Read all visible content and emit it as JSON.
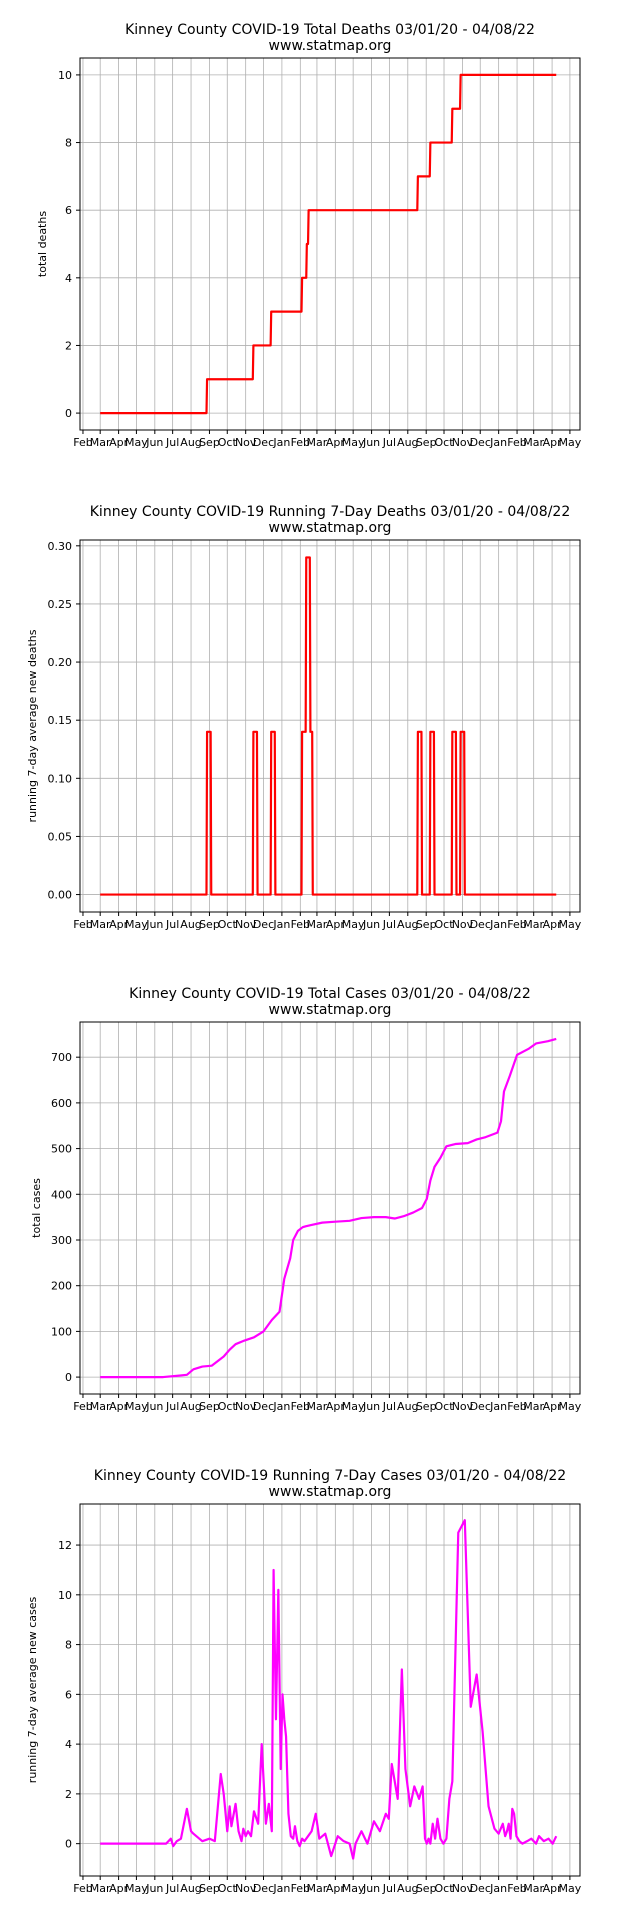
{
  "chart_data": [
    {
      "type": "line",
      "title": "Kinney County COVID-19 Total Deaths 03/01/20 - 04/08/22",
      "subtitle": "www.statmap.org",
      "ylabel": "total deaths",
      "ylim": [
        -0.5,
        10.5
      ],
      "yticks": [
        0,
        2,
        4,
        6,
        8,
        10
      ],
      "ytick_labels": [
        "0",
        "2",
        "4",
        "6",
        "8",
        "10"
      ],
      "grid": true,
      "color": "#ff0000",
      "x": [
        "2020-03-01",
        "2020-08-27",
        "2020-08-28",
        "2020-11-13",
        "2020-11-14",
        "2020-12-13",
        "2020-12-14",
        "2021-02-03",
        "2021-02-04",
        "2021-02-11",
        "2021-02-12",
        "2021-02-14",
        "2021-02-15",
        "2021-08-17",
        "2021-08-18",
        "2021-09-07",
        "2021-09-08",
        "2021-10-14",
        "2021-10-15",
        "2021-10-28",
        "2021-10-29",
        "2022-04-08"
      ],
      "y": [
        0,
        0,
        1,
        1,
        2,
        2,
        3,
        3,
        4,
        4,
        5,
        5,
        6,
        6,
        7,
        7,
        8,
        8,
        9,
        9,
        10,
        10
      ]
    },
    {
      "type": "line",
      "title": "Kinney County COVID-19 Running 7-Day Deaths 03/01/20 - 04/08/22",
      "subtitle": "www.statmap.org",
      "ylabel": "running 7-day average new deaths",
      "ylim": [
        -0.015,
        0.305
      ],
      "yticks": [
        0,
        0.05,
        0.1,
        0.15,
        0.2,
        0.25,
        0.3
      ],
      "ytick_labels": [
        "0.00",
        "0.05",
        "0.10",
        "0.15",
        "0.20",
        "0.25",
        "0.30"
      ],
      "grid": true,
      "color": "#ff0000",
      "x": [
        "2020-03-01",
        "2020-08-27",
        "2020-08-28",
        "2020-09-03",
        "2020-09-04",
        "2020-11-13",
        "2020-11-14",
        "2020-11-20",
        "2020-11-21",
        "2020-12-13",
        "2020-12-14",
        "2020-12-20",
        "2020-12-21",
        "2021-02-03",
        "2021-02-04",
        "2021-02-10",
        "2021-02-11",
        "2021-02-17",
        "2021-02-18",
        "2021-02-21",
        "2021-02-22",
        "2021-08-17",
        "2021-08-18",
        "2021-08-24",
        "2021-08-25",
        "2021-09-07",
        "2021-09-08",
        "2021-09-14",
        "2021-09-15",
        "2021-10-14",
        "2021-10-15",
        "2021-10-21",
        "2021-10-22",
        "2021-10-28",
        "2021-10-29",
        "2021-11-04",
        "2021-11-05",
        "2022-04-08"
      ],
      "y": [
        0,
        0,
        0.14,
        0.14,
        0,
        0,
        0.14,
        0.14,
        0,
        0,
        0.14,
        0.14,
        0,
        0,
        0.14,
        0.14,
        0.29,
        0.29,
        0.14,
        0.14,
        0,
        0,
        0.14,
        0.14,
        0,
        0,
        0.14,
        0.14,
        0,
        0,
        0.14,
        0.14,
        0,
        0,
        0.14,
        0.14,
        0,
        0
      ]
    },
    {
      "type": "line",
      "title": "Kinney County COVID-19 Total Cases 03/01/20 - 04/08/22",
      "subtitle": "www.statmap.org",
      "ylabel": "total cases",
      "ylim": [
        -37,
        777
      ],
      "yticks": [
        0,
        100,
        200,
        300,
        400,
        500,
        600,
        700
      ],
      "ytick_labels": [
        "0",
        "100",
        "200",
        "300",
        "400",
        "500",
        "600",
        "700"
      ],
      "grid": true,
      "color": "#ff00ff",
      "x": [
        "2020-03-01",
        "2020-05-01",
        "2020-06-15",
        "2020-07-10",
        "2020-07-25",
        "2020-08-05",
        "2020-08-20",
        "2020-09-05",
        "2020-09-25",
        "2020-10-05",
        "2020-10-15",
        "2020-10-30",
        "2020-11-15",
        "2020-12-01",
        "2020-12-15",
        "2020-12-28",
        "2021-01-05",
        "2021-01-15",
        "2021-01-20",
        "2021-01-28",
        "2021-02-05",
        "2021-02-10",
        "2021-02-20",
        "2021-03-10",
        "2021-04-01",
        "2021-04-25",
        "2021-05-15",
        "2021-06-05",
        "2021-06-25",
        "2021-07-10",
        "2021-07-25",
        "2021-08-10",
        "2021-08-25",
        "2021-09-02",
        "2021-09-08",
        "2021-09-15",
        "2021-09-25",
        "2021-10-05",
        "2021-10-20",
        "2021-11-10",
        "2021-11-25",
        "2021-12-10",
        "2021-12-30",
        "2022-01-05",
        "2022-01-10",
        "2022-01-20",
        "2022-02-01",
        "2022-02-20",
        "2022-03-05",
        "2022-03-25",
        "2022-04-08"
      ],
      "y": [
        0,
        0,
        0,
        3,
        5,
        17,
        23,
        25,
        45,
        60,
        72,
        80,
        87,
        100,
        125,
        143,
        215,
        260,
        300,
        320,
        328,
        330,
        333,
        338,
        340,
        342,
        348,
        350,
        350,
        347,
        352,
        360,
        370,
        390,
        430,
        460,
        480,
        505,
        510,
        512,
        520,
        525,
        535,
        560,
        625,
        660,
        705,
        718,
        730,
        735,
        740
      ]
    },
    {
      "type": "line",
      "title": "Kinney County COVID-19 Running 7-Day Cases 03/01/20 - 04/08/22",
      "subtitle": "www.statmap.org",
      "ylabel": "running 7-day average new cases",
      "ylim": [
        -1.3,
        13.65
      ],
      "yticks": [
        0,
        2,
        4,
        6,
        8,
        10,
        12
      ],
      "ytick_labels": [
        "0",
        "2",
        "4",
        "6",
        "8",
        "10",
        "12"
      ],
      "grid": true,
      "color": "#ff00ff",
      "x": [
        "2020-03-01",
        "2020-06-20",
        "2020-06-28",
        "2020-07-02",
        "2020-07-08",
        "2020-07-15",
        "2020-07-25",
        "2020-08-01",
        "2020-08-05",
        "2020-08-10",
        "2020-08-20",
        "2020-09-01",
        "2020-09-10",
        "2020-09-20",
        "2020-09-25",
        "2020-10-01",
        "2020-10-05",
        "2020-10-08",
        "2020-10-15",
        "2020-10-20",
        "2020-10-25",
        "2020-10-28",
        "2020-11-01",
        "2020-11-05",
        "2020-11-10",
        "2020-11-15",
        "2020-11-22",
        "2020-11-28",
        "2020-12-05",
        "2020-12-10",
        "2020-12-15",
        "2020-12-18",
        "2020-12-22",
        "2020-12-26",
        "2020-12-30",
        "2021-01-02",
        "2021-01-05",
        "2021-01-08",
        "2021-01-12",
        "2021-01-16",
        "2021-01-20",
        "2021-01-23",
        "2021-01-27",
        "2021-01-31",
        "2021-02-04",
        "2021-02-08",
        "2021-02-14",
        "2021-02-20",
        "2021-02-27",
        "2021-03-05",
        "2021-03-15",
        "2021-03-25",
        "2021-04-05",
        "2021-04-15",
        "2021-04-25",
        "2021-05-01",
        "2021-05-05",
        "2021-05-15",
        "2021-05-25",
        "2021-06-05",
        "2021-06-15",
        "2021-06-25",
        "2021-06-30",
        "2021-07-05",
        "2021-07-15",
        "2021-07-22",
        "2021-07-28",
        "2021-08-05",
        "2021-08-12",
        "2021-08-20",
        "2021-08-26",
        "2021-08-30",
        "2021-09-02",
        "2021-09-05",
        "2021-09-08",
        "2021-09-12",
        "2021-09-16",
        "2021-09-20",
        "2021-09-25",
        "2021-09-30",
        "2021-10-05",
        "2021-10-10",
        "2021-10-15",
        "2021-10-25",
        "2021-11-05",
        "2021-11-15",
        "2021-11-25",
        "2021-12-05",
        "2021-12-15",
        "2021-12-25",
        "2022-01-01",
        "2022-01-08",
        "2022-01-12",
        "2022-01-15",
        "2022-01-18",
        "2022-01-21",
        "2022-01-24",
        "2022-01-27",
        "2022-01-31",
        "2022-02-05",
        "2022-02-10",
        "2022-02-18",
        "2022-02-25",
        "2022-03-05",
        "2022-03-10",
        "2022-03-18",
        "2022-03-26",
        "2022-04-02",
        "2022-04-08"
      ],
      "y": [
        0,
        0,
        0.2,
        -0.1,
        0.1,
        0.2,
        1.4,
        0.5,
        0.4,
        0.3,
        0.1,
        0.2,
        0.1,
        2.8,
        2.0,
        0.5,
        1.5,
        0.7,
        1.6,
        0.5,
        0.1,
        0.6,
        0.3,
        0.5,
        0.3,
        1.3,
        0.8,
        4.0,
        0.8,
        1.6,
        0.5,
        11.0,
        5.0,
        10.2,
        3.0,
        6.0,
        5.0,
        4.3,
        1.2,
        0.3,
        0.2,
        0.7,
        0.1,
        -0.1,
        0.2,
        0.1,
        0.3,
        0.5,
        1.2,
        0.2,
        0.4,
        -0.5,
        0.3,
        0.1,
        0.0,
        -0.6,
        0.0,
        0.5,
        0.0,
        0.9,
        0.5,
        1.2,
        1.0,
        3.2,
        1.8,
        7.0,
        3.0,
        1.5,
        2.3,
        1.8,
        2.3,
        0.2,
        0.0,
        0.2,
        0.0,
        0.8,
        0.2,
        1.0,
        0.2,
        0.0,
        0.2,
        1.8,
        2.5,
        12.5,
        13.0,
        5.5,
        6.8,
        4.5,
        1.5,
        0.6,
        0.4,
        0.8,
        0.3,
        0.5,
        0.8,
        0.2,
        1.4,
        1.2,
        0.3,
        0.1,
        0.0,
        0.1,
        0.2,
        0.0,
        0.3,
        0.1,
        0.2,
        0.0,
        0.3
      ]
    }
  ],
  "xaxis": {
    "tick_dates": [
      "2020-02-01",
      "2020-03-01",
      "2020-04-01",
      "2020-05-01",
      "2020-06-01",
      "2020-07-01",
      "2020-08-01",
      "2020-09-01",
      "2020-10-01",
      "2020-11-01",
      "2020-12-01",
      "2021-01-01",
      "2021-02-01",
      "2021-03-01",
      "2021-04-01",
      "2021-05-01",
      "2021-06-01",
      "2021-07-01",
      "2021-08-01",
      "2021-09-01",
      "2021-10-01",
      "2021-11-01",
      "2021-12-01",
      "2022-01-01",
      "2022-02-01",
      "2022-03-01",
      "2022-04-01",
      "2022-05-01"
    ],
    "tick_labels": [
      "Feb",
      "Mar",
      "Apr",
      "May",
      "Jun",
      "Jul",
      "Aug",
      "Sep",
      "Oct",
      "Nov",
      "Dec",
      "Jan",
      "Feb",
      "Mar",
      "Apr",
      "May",
      "Jun",
      "Jul",
      "Aug",
      "Sep",
      "Oct",
      "Nov",
      "Dec",
      "Jan",
      "Feb",
      "Mar",
      "Apr",
      "May"
    ],
    "xlim": [
      "2020-01-27",
      "2022-05-18"
    ]
  }
}
